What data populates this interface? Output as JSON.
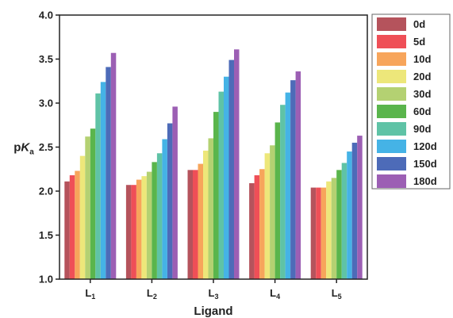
{
  "chart_data": {
    "type": "bar",
    "xlabel": "Ligand",
    "ylabel_main": "p",
    "ylabel_italic": "K",
    "ylabel_sub": "a",
    "ylim": [
      1.0,
      4.0
    ],
    "yticks": [
      "1.0",
      "1.5",
      "2.0",
      "2.5",
      "3.0",
      "3.5",
      "4.0"
    ],
    "legend_position": "right",
    "categories": [
      {
        "main": "L",
        "sub": "1"
      },
      {
        "main": "L",
        "sub": "2"
      },
      {
        "main": "L",
        "sub": "3"
      },
      {
        "main": "L",
        "sub": "4"
      },
      {
        "main": "L",
        "sub": "5"
      }
    ],
    "series": [
      {
        "name": "0d",
        "color": "#b5535c",
        "values": [
          2.11,
          2.07,
          2.24,
          2.09,
          2.04
        ]
      },
      {
        "name": "5d",
        "color": "#ef4f57",
        "values": [
          2.18,
          2.07,
          2.24,
          2.18,
          2.04
        ]
      },
      {
        "name": "10d",
        "color": "#f7a55b",
        "values": [
          2.23,
          2.13,
          2.31,
          2.25,
          2.04
        ]
      },
      {
        "name": "20d",
        "color": "#ede77a",
        "values": [
          2.4,
          2.17,
          2.46,
          2.43,
          2.11
        ]
      },
      {
        "name": "30d",
        "color": "#b4d172",
        "values": [
          2.62,
          2.22,
          2.6,
          2.52,
          2.15
        ]
      },
      {
        "name": "60d",
        "color": "#5ab54c",
        "values": [
          2.71,
          2.33,
          2.9,
          2.78,
          2.24
        ]
      },
      {
        "name": "90d",
        "color": "#5fc3a6",
        "values": [
          3.11,
          2.43,
          3.13,
          2.98,
          2.32
        ]
      },
      {
        "name": "120d",
        "color": "#45b3e6",
        "values": [
          3.24,
          2.59,
          3.3,
          3.12,
          2.45
        ]
      },
      {
        "name": "150d",
        "color": "#4d6bb8",
        "values": [
          3.41,
          2.77,
          3.49,
          3.26,
          2.55
        ]
      },
      {
        "name": "180d",
        "color": "#9c5fb4",
        "values": [
          3.57,
          2.96,
          3.61,
          3.36,
          2.63
        ]
      }
    ]
  }
}
